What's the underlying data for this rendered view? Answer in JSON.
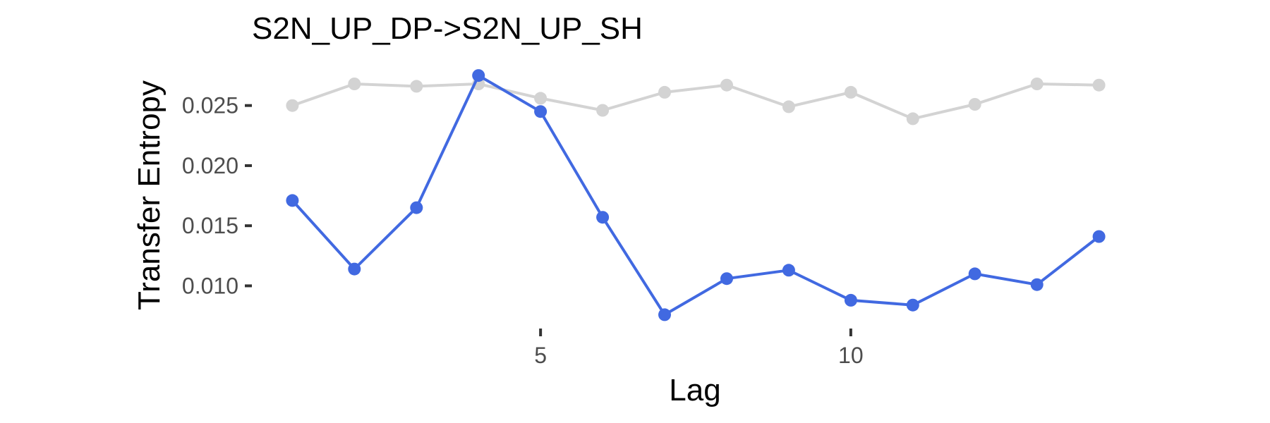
{
  "chart_data": {
    "type": "line",
    "title": "S2N_UP_DP->S2N_UP_SH",
    "xlabel": "Lag",
    "ylabel": "Transfer Entropy",
    "x": [
      1,
      2,
      3,
      4,
      5,
      6,
      7,
      8,
      9,
      10,
      11,
      12,
      13,
      14
    ],
    "xlim": [
      0.45,
      14.55
    ],
    "ylim": [
      0.0068,
      0.0285
    ],
    "xticks": [
      5,
      10
    ],
    "xtick_labels": [
      "5",
      "10"
    ],
    "yticks": [
      0.01,
      0.015,
      0.02,
      0.025
    ],
    "ytick_labels": [
      "0.010",
      "0.015",
      "0.020",
      "0.025"
    ],
    "grid": false,
    "legend": "none",
    "series": [
      {
        "color": "#d3d3d3",
        "values": [
          0.025,
          0.0268,
          0.0266,
          0.0268,
          0.0256,
          0.0246,
          0.0261,
          0.0267,
          0.0249,
          0.0261,
          0.0239,
          0.0251,
          0.0268,
          0.0267
        ]
      },
      {
        "color": "#4169e1",
        "values": [
          0.0171,
          0.0114,
          0.0165,
          0.0275,
          0.0245,
          0.0157,
          0.0076,
          0.0106,
          0.0113,
          0.0088,
          0.0084,
          0.011,
          0.0101,
          0.0141
        ]
      }
    ]
  }
}
